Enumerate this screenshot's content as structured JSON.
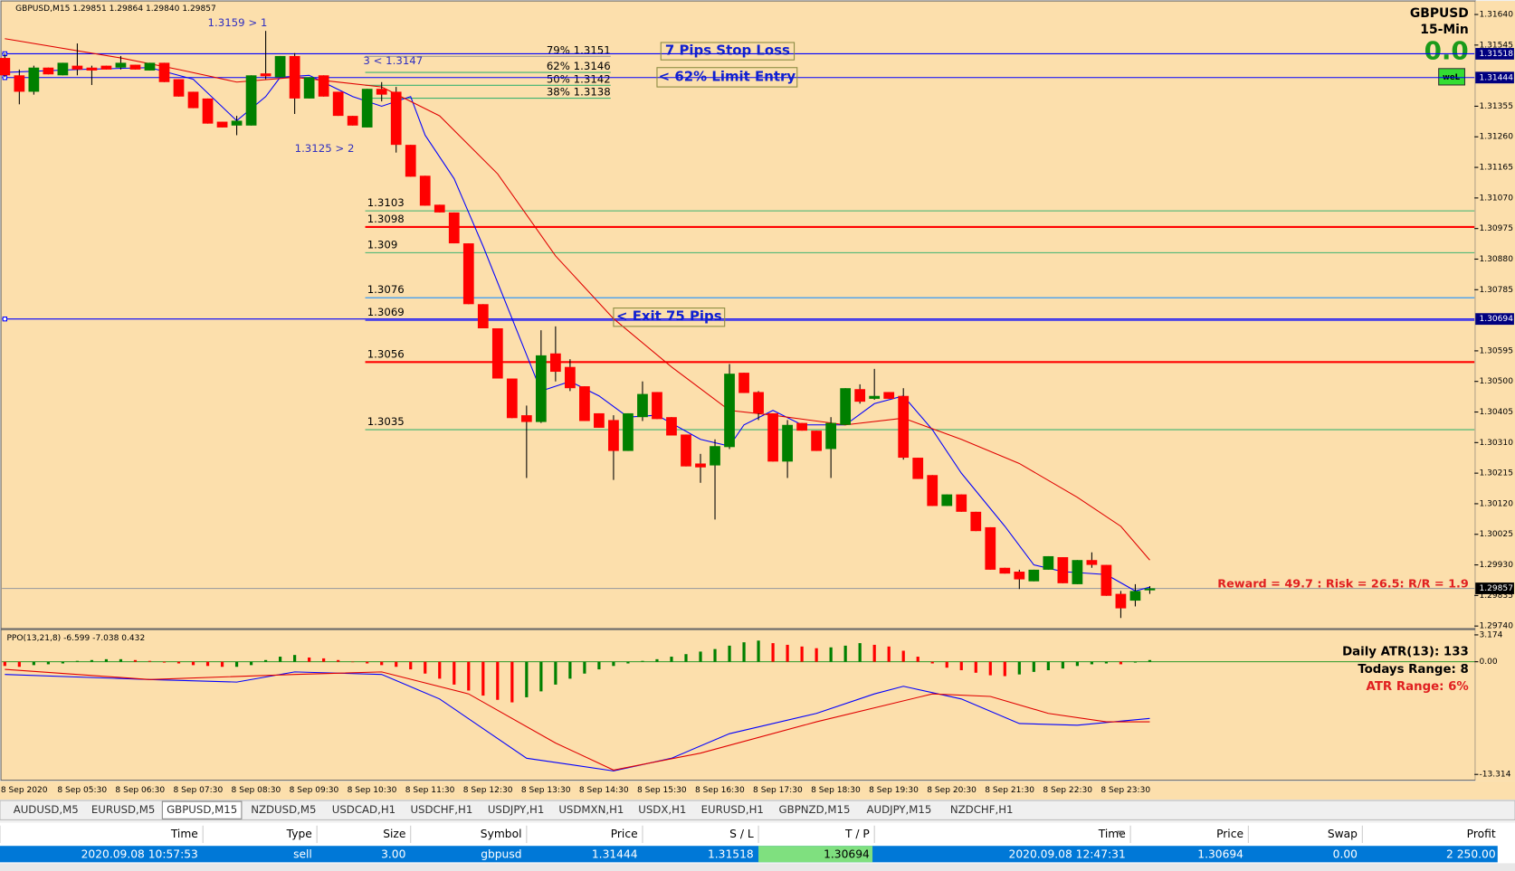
{
  "chart_data": [
    {
      "type": "candlestick",
      "title": "GBPUSD,M15  1.29851 1.29864 1.29840 1.29857",
      "symbol": "GBPUSD",
      "timeframe": "15-Min",
      "spread": "0.0",
      "badge": "weL",
      "time_labels": [
        "8 Sep 2020",
        "8 Sep 05:30",
        "8 Sep 06:30",
        "8 Sep 07:30",
        "8 Sep 08:30",
        "8 Sep 09:30",
        "8 Sep 10:30",
        "8 Sep 11:30",
        "8 Sep 12:30",
        "8 Sep 13:30",
        "8 Sep 14:30",
        "8 Sep 15:30",
        "8 Sep 16:30",
        "8 Sep 17:30",
        "8 Sep 18:30",
        "8 Sep 19:30",
        "8 Sep 20:30",
        "8 Sep 21:30",
        "8 Sep 22:30",
        "8 Sep 23:30"
      ],
      "open": [
        1.31505,
        1.31451,
        1.314,
        1.31475,
        1.31451,
        1.31481,
        1.31475,
        1.31481,
        1.31475,
        1.31484,
        1.31466,
        1.3149,
        1.31439,
        1.314,
        1.31379,
        1.31307,
        1.31295,
        1.31295,
        1.31457,
        1.31445,
        1.31511,
        1.31379,
        1.31451,
        1.314,
        1.31325,
        1.31289,
        1.31409,
        1.314,
        1.31235,
        1.31139,
        1.31049,
        1.31025,
        1.30929,
        1.3074,
        1.30665,
        1.30509,
        1.30395,
        1.30374,
        1.30587,
        1.30545,
        1.30485,
        1.30401,
        1.3038,
        1.30284,
        1.30389,
        1.30467,
        1.30389,
        1.30335,
        1.30245,
        1.30239,
        1.30296,
        1.30527,
        1.30467,
        1.30401,
        1.30251,
        1.30371,
        1.30347,
        1.3029,
        1.30365,
        1.30476,
        1.30446,
        1.30467,
        1.30455,
        1.30263,
        1.30209,
        1.30113,
        1.30149,
        1.30095,
        1.30047,
        1.29921,
        1.29909,
        1.29879,
        1.29915,
        1.29954,
        1.2987,
        1.29945,
        1.2993,
        1.2984,
        1.29819,
        1.29851
      ],
      "high": [
        1.3152,
        1.31469,
        1.31481,
        1.31475,
        1.3149,
        1.3155,
        1.31481,
        1.31481,
        1.31511,
        1.31484,
        1.3149,
        1.3149,
        1.31439,
        1.314,
        1.31379,
        1.31307,
        1.31325,
        1.31451,
        1.31589,
        1.31511,
        1.3152,
        1.31445,
        1.31451,
        1.314,
        1.31325,
        1.31409,
        1.3143,
        1.31415,
        1.31235,
        1.31139,
        1.31049,
        1.31025,
        1.30929,
        1.3074,
        1.30665,
        1.30509,
        1.30425,
        1.30659,
        1.30671,
        1.30569,
        1.30485,
        1.30401,
        1.30395,
        1.30401,
        1.305,
        1.30467,
        1.30389,
        1.30335,
        1.30275,
        1.3032,
        1.30554,
        1.30527,
        1.3047,
        1.30401,
        1.3038,
        1.30371,
        1.30347,
        1.30389,
        1.30479,
        1.30491,
        1.30539,
        1.30467,
        1.30479,
        1.30263,
        1.30209,
        1.30149,
        1.30149,
        1.30095,
        1.30047,
        1.29921,
        1.29915,
        1.29915,
        1.29957,
        1.29954,
        1.29945,
        1.29969,
        1.2993,
        1.29849,
        1.2987,
        1.29864
      ],
      "low": [
        1.31445,
        1.31361,
        1.31391,
        1.31454,
        1.31451,
        1.31451,
        1.31421,
        1.31469,
        1.31469,
        1.31469,
        1.31466,
        1.3143,
        1.31385,
        1.31349,
        1.31301,
        1.31289,
        1.31265,
        1.31295,
        1.31439,
        1.31445,
        1.31331,
        1.31379,
        1.31385,
        1.31325,
        1.31295,
        1.31289,
        1.3137,
        1.31211,
        1.31136,
        1.31046,
        1.31025,
        1.30929,
        1.3074,
        1.30665,
        1.30509,
        1.30386,
        1.302,
        1.30371,
        1.305,
        1.3047,
        1.30377,
        1.30356,
        1.30194,
        1.30284,
        1.30377,
        1.30383,
        1.30332,
        1.30236,
        1.30185,
        1.30071,
        1.3029,
        1.30464,
        1.3038,
        1.30251,
        1.302,
        1.30347,
        1.30284,
        1.302,
        1.30365,
        1.30431,
        1.30443,
        1.30446,
        1.30257,
        1.30197,
        1.30113,
        1.30113,
        1.30095,
        1.30035,
        1.29915,
        1.29903,
        1.29855,
        1.29879,
        1.29915,
        1.29873,
        1.2987,
        1.29921,
        1.29834,
        1.29765,
        1.29801,
        1.2984
      ],
      "close": [
        1.31451,
        1.314,
        1.31475,
        1.31454,
        1.3149,
        1.31469,
        1.31466,
        1.31469,
        1.3149,
        1.31469,
        1.3149,
        1.3143,
        1.31385,
        1.31349,
        1.31301,
        1.31289,
        1.3131,
        1.31451,
        1.31448,
        1.31511,
        1.31379,
        1.31445,
        1.31385,
        1.31325,
        1.31295,
        1.31409,
        1.31391,
        1.31235,
        1.31136,
        1.31046,
        1.31025,
        1.30929,
        1.3074,
        1.30665,
        1.30509,
        1.30386,
        1.30374,
        1.30581,
        1.3053,
        1.30479,
        1.30377,
        1.30356,
        1.30284,
        1.30401,
        1.30461,
        1.30383,
        1.30332,
        1.30236,
        1.30233,
        1.30299,
        1.30524,
        1.30464,
        1.30401,
        1.30251,
        1.30365,
        1.30347,
        1.30284,
        1.30371,
        1.30479,
        1.30437,
        1.30455,
        1.30446,
        1.30263,
        1.30197,
        1.30113,
        1.30149,
        1.30095,
        1.30035,
        1.29915,
        1.29903,
        1.29885,
        1.29915,
        1.29957,
        1.29873,
        1.29945,
        1.2993,
        1.29834,
        1.29795,
        1.29849,
        1.29857
      ],
      "up_color": "#008000",
      "down_color": "#ff0000",
      "ylim": [
        1.29735,
        1.31679
      ],
      "yticks": [
        {
          "value": 1.3164,
          "label": "1.31640"
        },
        1.31545,
        1.31355,
        {
          "value": 1.3126,
          "label": "1.31260"
        },
        1.31165,
        {
          "value": 1.3107,
          "label": "1.31070"
        },
        1.30975,
        {
          "value": 1.3088,
          "label": "1.30880"
        },
        1.30785,
        1.30595,
        {
          "value": 1.305,
          "label": "1.30500"
        },
        1.30405,
        {
          "value": 1.3031,
          "label": "1.30310"
        },
        1.30215,
        {
          "value": 1.3012,
          "label": "1.30120"
        },
        1.30025,
        {
          "value": 1.2993,
          "label": "1.29930"
        },
        1.29835,
        {
          "value": 1.2974,
          "label": "1.29740"
        }
      ],
      "moving_averages": [
        {
          "color": "#0000ff",
          "x": [
            0,
            5,
            10,
            13,
            16,
            18,
            19,
            21,
            24,
            26,
            28,
            29,
            31,
            33,
            35,
            37,
            39,
            41,
            43,
            45,
            48,
            50,
            51,
            53,
            55,
            58,
            60,
            62,
            64,
            66,
            69,
            71,
            73,
            76,
            78,
            79
          ],
          "values": [
            1.3146,
            1.31469,
            1.31475,
            1.31439,
            1.3131,
            1.31385,
            1.31445,
            1.31451,
            1.31385,
            1.31355,
            1.31385,
            1.31265,
            1.3113,
            1.3092,
            1.30695,
            1.3047,
            1.305,
            1.30455,
            1.30389,
            1.30395,
            1.3032,
            1.30299,
            1.30365,
            1.3041,
            1.30365,
            1.30365,
            1.30431,
            1.30455,
            1.3035,
            1.30215,
            1.3005,
            1.2993,
            1.29909,
            1.299,
            1.29849,
            1.29861
          ]
        },
        {
          "color": "#e00000",
          "x": [
            0,
            8,
            12,
            16,
            20,
            26,
            30,
            34,
            38,
            42,
            46,
            50,
            53,
            58,
            62,
            66,
            70,
            74,
            77,
            79
          ],
          "values": [
            1.31565,
            1.31505,
            1.31469,
            1.3143,
            1.31445,
            1.31415,
            1.31325,
            1.31145,
            1.3089,
            1.30695,
            1.30545,
            1.3041,
            1.30395,
            1.30365,
            1.30386,
            1.3032,
            1.30245,
            1.3014,
            1.3005,
            1.29945
          ]
        }
      ],
      "price_lines": [
        {
          "value": 1.31518,
          "color": "#0000ff"
        },
        {
          "value": 1.31444,
          "color": "#0000ff"
        },
        {
          "value": 1.30694,
          "color": "#0000ff"
        },
        {
          "value": 1.29857,
          "color": "#a0a0a0"
        }
      ],
      "levels": [
        {
          "value": 1.3103,
          "color": "#3cb371"
        },
        {
          "value": 1.3098,
          "color": "#ff0000"
        },
        {
          "value": 1.309,
          "color": "#3cb371"
        },
        {
          "value": 1.3076,
          "color": "#1e90ff"
        },
        {
          "value": 1.3069,
          "color": "#0000ff"
        },
        {
          "value": 1.3056,
          "color": "#ff0000"
        },
        {
          "value": 1.3035,
          "color": "#3cb371"
        }
      ],
      "fib_levels": [
        {
          "value": 1.3151,
          "label": "79% 1.3151"
        },
        {
          "value": 1.3146,
          "label": "62% 1.3146"
        },
        {
          "value": 1.3142,
          "label": "50% 1.3142"
        },
        {
          "value": 1.3138,
          "label": "38% 1.3138"
        }
      ],
      "annotations": [
        "1.3159 > 1",
        "3 < 1.3147",
        "1.3125 > 2"
      ],
      "boxes": [
        "7 Pips Stop Loss",
        "< 62% Limit Entry",
        "< Exit 75 Pips"
      ],
      "reward_risk": "Reward = 49.7 : Risk = 26.5: R/R = 1.9"
    },
    {
      "type": "ppo",
      "title": "PPO(13,21,8) -6.599 -7.038 0.432",
      "values": [
        -0.5,
        -0.6,
        -0.4,
        -0.3,
        -0.2,
        0.1,
        0.2,
        0.3,
        0.3,
        0.2,
        0.1,
        -0.1,
        -0.2,
        -0.4,
        -0.5,
        -0.6,
        -0.6,
        -0.4,
        0.2,
        0.6,
        0.8,
        0.5,
        0.4,
        0.2,
        0.0,
        -0.2,
        -0.4,
        -0.6,
        -0.9,
        -1.4,
        -2.0,
        -2.7,
        -3.4,
        -4.0,
        -4.5,
        -4.8,
        -4.2,
        -3.5,
        -2.7,
        -2.0,
        -1.4,
        -0.9,
        -0.5,
        -0.2,
        0.1,
        0.3,
        0.6,
        0.9,
        1.2,
        1.5,
        1.9,
        2.3,
        2.5,
        2.2,
        2.0,
        1.8,
        1.6,
        1.7,
        1.9,
        2.2,
        2.0,
        1.8,
        1.3,
        0.6,
        -0.2,
        -0.7,
        -1.0,
        -1.3,
        -1.6,
        -1.7,
        -1.5,
        -1.2,
        -1.0,
        -0.8,
        -0.5,
        -0.3,
        -0.2,
        -0.3,
        -0.1,
        0.2
      ],
      "up_color": "#008000",
      "down_color": "#ff0000",
      "ylim": [
        -14,
        3.8
      ],
      "yticks": [
        3.174,
        {
          "value": 0,
          "label": "0.00"
        },
        -13.314
      ],
      "lines": [
        {
          "color": "#0000ff",
          "x": [
            0,
            10,
            16,
            20,
            26,
            30,
            36,
            42,
            46,
            50,
            56,
            60,
            62,
            66,
            70,
            74,
            79
          ],
          "values": [
            -1.5,
            -2.1,
            -2.4,
            -1.2,
            -1.5,
            -4.4,
            -11.4,
            -12.9,
            -11.4,
            -8.5,
            -6.1,
            -3.8,
            -2.9,
            -4.4,
            -7.3,
            -7.5,
            -6.7
          ]
        },
        {
          "color": "#e00000",
          "x": [
            0,
            10,
            20,
            26,
            32,
            38,
            42,
            48,
            56,
            64,
            68,
            72,
            76,
            79
          ],
          "values": [
            -0.9,
            -2.1,
            -1.5,
            -1.2,
            -3.8,
            -9.6,
            -12.8,
            -10.8,
            -7.1,
            -3.8,
            -4.1,
            -6.1,
            -7.1,
            -7.1
          ]
        }
      ],
      "stats": [
        "Daily ATR(13): 133",
        "Todays Range: 8",
        "ATR Range: 6%"
      ]
    }
  ],
  "tabs": [
    "AUDUSD,M5",
    "EURUSD,M5",
    "GBPUSD,M15",
    "NZDUSD,M5",
    "USDCAD,H1",
    "USDCHF,H1",
    "USDJPY,H1",
    "USDMXN,H1",
    "USDX,H1",
    "EURUSD,H1",
    "GBPNZD,M15",
    "AUDJPY,M15",
    "NZDCHF,H1"
  ],
  "active_tab": 2,
  "trade_table": {
    "header": [
      "Time",
      "Type",
      "Size",
      "Symbol",
      "Price",
      "S / L",
      "T / P",
      "Time",
      "Price",
      "Swap",
      "Profit"
    ],
    "rows": [
      [
        "2020.09.08 10:57:53",
        "sell",
        "3.00",
        "gbpusd",
        "1.31444",
        "1.31518",
        "1.30694",
        "2020.09.08 12:47:31",
        "1.30694",
        "0.00",
        "2 250.00"
      ]
    ]
  }
}
